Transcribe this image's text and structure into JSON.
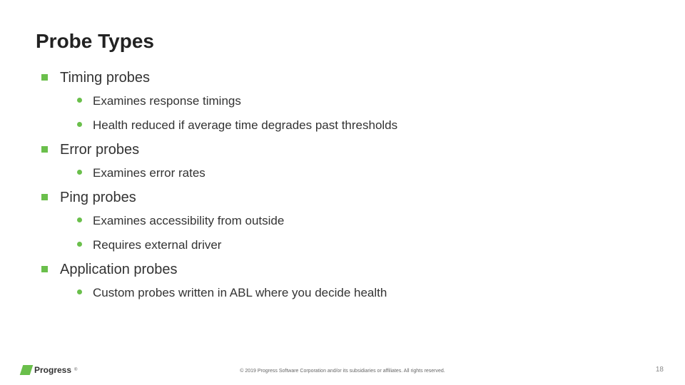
{
  "slide": {
    "title": "Probe Types",
    "accent_color": "#6abf4b",
    "text_color": "#333333",
    "title_color": "#222222",
    "background_color": "#ffffff",
    "title_fontsize": 28,
    "level1_fontsize": 20,
    "level2_fontsize": 17,
    "bullets": [
      {
        "text": "Timing probes",
        "children": [
          "Examines response timings",
          "Health reduced if average time degrades past thresholds"
        ]
      },
      {
        "text": "Error probes",
        "children": [
          "Examines error rates"
        ]
      },
      {
        "text": "Ping probes",
        "children": [
          "Examines accessibility from outside",
          "Requires external driver"
        ]
      },
      {
        "text": "Application probes",
        "children": [
          "Custom probes written in ABL where you decide health"
        ]
      }
    ]
  },
  "footer": {
    "logo_text": "Progress",
    "copyright": "© 2019 Progress Software Corporation and/or its subsidiaries or affiliates. All rights reserved.",
    "page_number": "18"
  }
}
